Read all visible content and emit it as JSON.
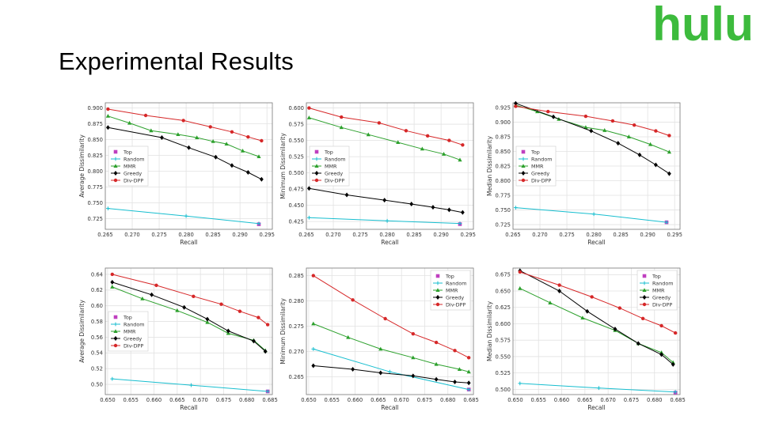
{
  "logo": {
    "text": "hulu",
    "color": "#3dbb3d"
  },
  "title": "Experimental  Results",
  "colors": {
    "Top": "#bf3fbf",
    "Random": "#17becf",
    "MMR": "#2ca02c",
    "Greedy": "#000000",
    "Div-DPP": "#d62728"
  },
  "chart_data": [
    {
      "type": "line",
      "xlabel": "Recall",
      "ylabel": "Average Dissimilarity",
      "xlim": [
        0.265,
        0.296
      ],
      "ylim": [
        0.708,
        0.908
      ],
      "xticks": [
        "0.265",
        "0.270",
        "0.275",
        "0.280",
        "0.285",
        "0.290",
        "0.295"
      ],
      "yticks": [
        "0.725",
        "0.750",
        "0.775",
        "0.800",
        "0.825",
        "0.850",
        "0.875",
        "0.900"
      ],
      "legend": "center-left",
      "legend_labels": [
        "Top",
        "Random",
        "MMR",
        "Greedy",
        "Div-DPP"
      ],
      "series": [
        {
          "name": "Top",
          "points": [
            [
              0.2935,
              0.716
            ]
          ]
        },
        {
          "name": "Random",
          "points": [
            [
              0.2655,
              0.741
            ],
            [
              0.28,
              0.729
            ],
            [
              0.2935,
              0.717
            ]
          ]
        },
        {
          "name": "MMR",
          "points": [
            [
              0.2655,
              0.887
            ],
            [
              0.2695,
              0.876
            ],
            [
              0.2735,
              0.864
            ],
            [
              0.2785,
              0.858
            ],
            [
              0.282,
              0.853
            ],
            [
              0.285,
              0.847
            ],
            [
              0.2875,
              0.843
            ],
            [
              0.2905,
              0.832
            ],
            [
              0.2935,
              0.823
            ]
          ]
        },
        {
          "name": "Greedy",
          "points": [
            [
              0.2655,
              0.869
            ],
            [
              0.2755,
              0.853
            ],
            [
              0.2805,
              0.837
            ],
            [
              0.2855,
              0.822
            ],
            [
              0.2885,
              0.809
            ],
            [
              0.2915,
              0.798
            ],
            [
              0.294,
              0.787
            ]
          ]
        },
        {
          "name": "Div-DPP",
          "points": [
            [
              0.2655,
              0.898
            ],
            [
              0.2725,
              0.888
            ],
            [
              0.2795,
              0.88
            ],
            [
              0.2845,
              0.87
            ],
            [
              0.2885,
              0.862
            ],
            [
              0.2915,
              0.854
            ],
            [
              0.294,
              0.848
            ]
          ]
        }
      ]
    },
    {
      "type": "line",
      "xlabel": "Recall",
      "ylabel": "Minimum Dissimilarity",
      "xlim": [
        0.265,
        0.296
      ],
      "ylim": [
        0.413,
        0.608
      ],
      "xticks": [
        "0.265",
        "0.270",
        "0.275",
        "0.280",
        "0.285",
        "0.290",
        "0.295"
      ],
      "yticks": [
        "0.425",
        "0.450",
        "0.475",
        "0.500",
        "0.525",
        "0.550",
        "0.575",
        "0.600"
      ],
      "legend": "center-left",
      "legend_labels": [
        "Top",
        "Random",
        "MMR",
        "Greedy",
        "Div-DPP"
      ],
      "series": [
        {
          "name": "Top",
          "points": [
            [
              0.2935,
              0.421
            ]
          ]
        },
        {
          "name": "Random",
          "points": [
            [
              0.2655,
              0.431
            ],
            [
              0.28,
              0.426
            ],
            [
              0.2935,
              0.422
            ]
          ]
        },
        {
          "name": "MMR",
          "points": [
            [
              0.2655,
              0.585
            ],
            [
              0.2715,
              0.57
            ],
            [
              0.2765,
              0.559
            ],
            [
              0.282,
              0.547
            ],
            [
              0.2865,
              0.537
            ],
            [
              0.2905,
              0.529
            ],
            [
              0.2935,
              0.52
            ]
          ]
        },
        {
          "name": "Greedy",
          "points": [
            [
              0.2655,
              0.476
            ],
            [
              0.2725,
              0.466
            ],
            [
              0.2795,
              0.458
            ],
            [
              0.2845,
              0.452
            ],
            [
              0.2885,
              0.447
            ],
            [
              0.2915,
              0.443
            ],
            [
              0.294,
              0.439
            ]
          ]
        },
        {
          "name": "Div-DPP",
          "points": [
            [
              0.2655,
              0.6
            ],
            [
              0.2715,
              0.586
            ],
            [
              0.2785,
              0.577
            ],
            [
              0.2835,
              0.565
            ],
            [
              0.2875,
              0.557
            ],
            [
              0.2915,
              0.55
            ],
            [
              0.294,
              0.543
            ]
          ]
        }
      ]
    },
    {
      "type": "line",
      "xlabel": "Recall",
      "ylabel": "Median Dissimilarity",
      "xlim": [
        0.265,
        0.296
      ],
      "ylim": [
        0.717,
        0.933
      ],
      "xticks": [
        "0.265",
        "0.270",
        "0.275",
        "0.280",
        "0.285",
        "0.290",
        "0.295"
      ],
      "yticks": [
        "0.725",
        "0.750",
        "0.775",
        "0.800",
        "0.825",
        "0.850",
        "0.875",
        "0.900",
        "0.925"
      ],
      "legend": "center-left",
      "legend_labels": [
        "Top",
        "Random",
        "MMR",
        "Greedy",
        "Div-DPP"
      ],
      "series": [
        {
          "name": "Top",
          "points": [
            [
              0.2935,
              0.729
            ]
          ]
        },
        {
          "name": "Random",
          "points": [
            [
              0.2655,
              0.754
            ],
            [
              0.28,
              0.743
            ],
            [
              0.2935,
              0.729
            ]
          ]
        },
        {
          "name": "MMR",
          "points": [
            [
              0.2655,
              0.929
            ],
            [
              0.2695,
              0.918
            ],
            [
              0.2735,
              0.905
            ],
            [
              0.2785,
              0.891
            ],
            [
              0.282,
              0.886
            ],
            [
              0.2865,
              0.875
            ],
            [
              0.2905,
              0.862
            ],
            [
              0.294,
              0.849
            ]
          ]
        },
        {
          "name": "Greedy",
          "points": [
            [
              0.2655,
              0.932
            ],
            [
              0.2725,
              0.909
            ],
            [
              0.2795,
              0.885
            ],
            [
              0.2845,
              0.864
            ],
            [
              0.2885,
              0.844
            ],
            [
              0.2915,
              0.827
            ],
            [
              0.294,
              0.812
            ]
          ]
        },
        {
          "name": "Div-DPP",
          "points": [
            [
              0.2655,
              0.927
            ],
            [
              0.2715,
              0.918
            ],
            [
              0.2785,
              0.91
            ],
            [
              0.2835,
              0.902
            ],
            [
              0.2875,
              0.895
            ],
            [
              0.2915,
              0.885
            ],
            [
              0.294,
              0.877
            ]
          ]
        }
      ]
    },
    {
      "type": "line",
      "xlabel": "Recall",
      "ylabel": "Average Dissimilarity",
      "xlim": [
        0.6495,
        0.6855
      ],
      "ylim": [
        0.487,
        0.648
      ],
      "xticks": [
        "0.650",
        "0.655",
        "0.660",
        "0.665",
        "0.670",
        "0.675",
        "0.680",
        "0.685"
      ],
      "yticks": [
        "0.50",
        "0.52",
        "0.54",
        "0.56",
        "0.58",
        "0.60",
        "0.62",
        "0.64"
      ],
      "legend": "center-left",
      "legend_labels": [
        "Top",
        "Random",
        "MMR",
        "Greedy",
        "Div-DPP"
      ],
      "series": [
        {
          "name": "Top",
          "points": [
            [
              0.6845,
              0.491
            ]
          ]
        },
        {
          "name": "Random",
          "points": [
            [
              0.651,
              0.507
            ],
            [
              0.668,
              0.499
            ],
            [
              0.6845,
              0.491
            ]
          ]
        },
        {
          "name": "MMR",
          "points": [
            [
              0.651,
              0.624
            ],
            [
              0.6575,
              0.609
            ],
            [
              0.665,
              0.594
            ],
            [
              0.6715,
              0.579
            ],
            [
              0.676,
              0.565
            ],
            [
              0.6815,
              0.556
            ],
            [
              0.684,
              0.543
            ]
          ]
        },
        {
          "name": "Greedy",
          "points": [
            [
              0.651,
              0.63
            ],
            [
              0.6595,
              0.614
            ],
            [
              0.6665,
              0.598
            ],
            [
              0.6715,
              0.583
            ],
            [
              0.676,
              0.568
            ],
            [
              0.6815,
              0.555
            ],
            [
              0.684,
              0.542
            ]
          ]
        },
        {
          "name": "Div-DPP",
          "points": [
            [
              0.651,
              0.64
            ],
            [
              0.6605,
              0.626
            ],
            [
              0.6685,
              0.612
            ],
            [
              0.6745,
              0.602
            ],
            [
              0.6785,
              0.593
            ],
            [
              0.6825,
              0.585
            ],
            [
              0.6845,
              0.576
            ]
          ]
        }
      ]
    },
    {
      "type": "line",
      "xlabel": "Recall",
      "ylabel": "Minimum Dissimilarity",
      "xlim": [
        0.6495,
        0.6855
      ],
      "ylim": [
        0.2615,
        0.2865
      ],
      "xticks": [
        "0.650",
        "0.655",
        "0.660",
        "0.665",
        "0.670",
        "0.675",
        "0.680",
        "0.685"
      ],
      "yticks": [
        "0.265",
        "0.270",
        "0.275",
        "0.280",
        "0.285"
      ],
      "legend": "top-right",
      "legend_labels": [
        "Top",
        "Random",
        "MMR",
        "Greedy",
        "Div-DPP"
      ],
      "series": [
        {
          "name": "Top",
          "points": [
            [
              0.6845,
              0.2625
            ]
          ]
        },
        {
          "name": "Random",
          "points": [
            [
              0.651,
              0.2705
            ],
            [
              0.6675,
              0.266
            ],
            [
              0.6845,
              0.2625
            ]
          ]
        },
        {
          "name": "MMR",
          "points": [
            [
              0.651,
              0.2755
            ],
            [
              0.6585,
              0.2728
            ],
            [
              0.6655,
              0.2705
            ],
            [
              0.6725,
              0.2688
            ],
            [
              0.6775,
              0.2675
            ],
            [
              0.6825,
              0.2665
            ],
            [
              0.6845,
              0.266
            ]
          ]
        },
        {
          "name": "Greedy",
          "points": [
            [
              0.651,
              0.2672
            ],
            [
              0.6595,
              0.2665
            ],
            [
              0.6655,
              0.2658
            ],
            [
              0.6725,
              0.2652
            ],
            [
              0.6775,
              0.2645
            ],
            [
              0.6815,
              0.264
            ],
            [
              0.6845,
              0.2638
            ]
          ]
        },
        {
          "name": "Div-DPP",
          "points": [
            [
              0.651,
              0.285
            ],
            [
              0.6595,
              0.2802
            ],
            [
              0.6665,
              0.2765
            ],
            [
              0.6725,
              0.2735
            ],
            [
              0.6775,
              0.2718
            ],
            [
              0.6815,
              0.2702
            ],
            [
              0.6845,
              0.2688
            ]
          ]
        }
      ]
    },
    {
      "type": "line",
      "xlabel": "Recall",
      "ylabel": "Median Dissimilarity",
      "xlim": [
        0.6495,
        0.6855
      ],
      "ylim": [
        0.492,
        0.685
      ],
      "xticks": [
        "0.650",
        "0.655",
        "0.660",
        "0.665",
        "0.670",
        "0.675",
        "0.680",
        "0.685"
      ],
      "yticks": [
        "0.500",
        "0.525",
        "0.550",
        "0.575",
        "0.600",
        "0.625",
        "0.650",
        "0.675"
      ],
      "legend": "top-right",
      "legend_labels": [
        "Top",
        "Random",
        "MMR",
        "Greedy",
        "Div-DPP"
      ],
      "series": [
        {
          "name": "Top",
          "points": [
            [
              0.6845,
              0.495
            ]
          ]
        },
        {
          "name": "Random",
          "points": [
            [
              0.651,
              0.509
            ],
            [
              0.668,
              0.502
            ],
            [
              0.6845,
              0.496
            ]
          ]
        },
        {
          "name": "MMR",
          "points": [
            [
              0.651,
              0.654
            ],
            [
              0.6575,
              0.632
            ],
            [
              0.6645,
              0.609
            ],
            [
              0.6715,
              0.59
            ],
            [
              0.6765,
              0.57
            ],
            [
              0.6815,
              0.556
            ],
            [
              0.684,
              0.541
            ]
          ]
        },
        {
          "name": "Greedy",
          "points": [
            [
              0.651,
              0.681
            ],
            [
              0.6595,
              0.65
            ],
            [
              0.6655,
              0.619
            ],
            [
              0.6715,
              0.592
            ],
            [
              0.6765,
              0.57
            ],
            [
              0.6815,
              0.553
            ],
            [
              0.684,
              0.538
            ]
          ]
        },
        {
          "name": "Div-DPP",
          "points": [
            [
              0.651,
              0.679
            ],
            [
              0.6595,
              0.659
            ],
            [
              0.6665,
              0.641
            ],
            [
              0.6725,
              0.624
            ],
            [
              0.6775,
              0.608
            ],
            [
              0.6815,
              0.597
            ],
            [
              0.6845,
              0.586
            ]
          ]
        }
      ]
    }
  ]
}
